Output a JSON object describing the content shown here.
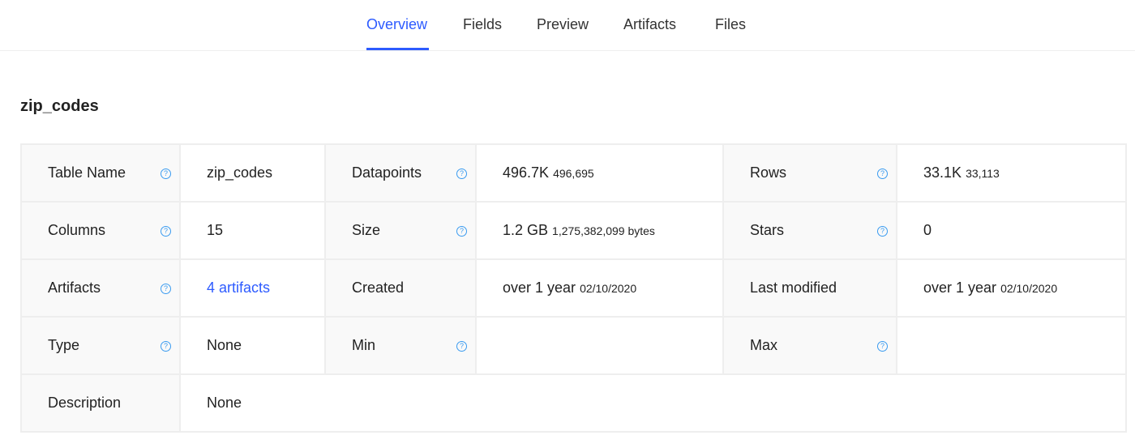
{
  "tabs": [
    "Overview",
    "Fields",
    "Preview",
    "Artifacts",
    "Files"
  ],
  "active_tab": "Overview",
  "title": "zip_codes",
  "rows": [
    [
      {
        "label": "Table Name",
        "help": true,
        "value": "zip_codes",
        "sub": ""
      },
      {
        "label": "Datapoints",
        "help": true,
        "value": "496.7K",
        "sub": "496,695"
      },
      {
        "label": "Rows",
        "help": true,
        "value": "33.1K",
        "sub": "33,113"
      }
    ],
    [
      {
        "label": "Columns",
        "help": true,
        "value": "15",
        "sub": ""
      },
      {
        "label": "Size",
        "help": true,
        "value": "1.2 GB",
        "sub": "1,275,382,099 bytes"
      },
      {
        "label": "Stars",
        "help": true,
        "value": "0",
        "sub": ""
      }
    ],
    [
      {
        "label": "Artifacts",
        "help": true,
        "value": "4 artifacts",
        "sub": "",
        "link": true
      },
      {
        "label": "Created",
        "help": false,
        "value": "over 1 year",
        "sub": "02/10/2020"
      },
      {
        "label": "Last modified",
        "help": false,
        "value": "over 1 year",
        "sub": "02/10/2020"
      }
    ],
    [
      {
        "label": "Type",
        "help": true,
        "value": "None",
        "sub": ""
      },
      {
        "label": "Min",
        "help": true,
        "value": "",
        "sub": ""
      },
      {
        "label": "Max",
        "help": true,
        "value": "",
        "sub": ""
      }
    ]
  ],
  "description": {
    "label": "Description",
    "value": "None"
  },
  "colors": {
    "accent": "#2d5bff",
    "help_icon": "#3a9bf0"
  }
}
